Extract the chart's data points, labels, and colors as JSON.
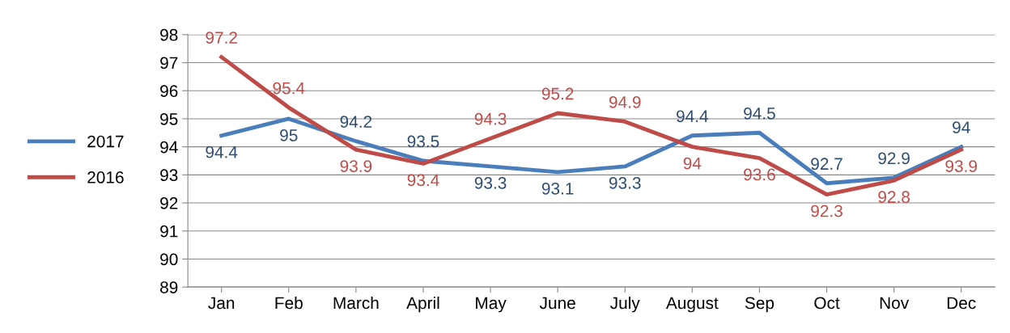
{
  "chart_data": {
    "type": "line",
    "categories": [
      "Jan",
      "Feb",
      "March",
      "April",
      "May",
      "June",
      "July",
      "August",
      "Sep",
      "Oct",
      "Nov",
      "Dec"
    ],
    "series": [
      {
        "name": "2017",
        "color": "#4a7ebb",
        "values": [
          94.4,
          95,
          94.2,
          93.5,
          93.3,
          93.1,
          93.3,
          94.4,
          94.5,
          92.7,
          92.9,
          94
        ]
      },
      {
        "name": "2016",
        "color": "#be4b48",
        "values": [
          97.2,
          95.4,
          93.9,
          93.4,
          94.3,
          95.2,
          94.9,
          94,
          93.6,
          92.3,
          92.8,
          93.9
        ]
      }
    ],
    "ylim": [
      89,
      98
    ],
    "yticks": [
      89,
      90,
      91,
      92,
      93,
      94,
      95,
      96,
      97,
      98
    ],
    "grid": "y",
    "legend": "left",
    "data_labels": true,
    "marker": "none",
    "line_style": "solid"
  }
}
